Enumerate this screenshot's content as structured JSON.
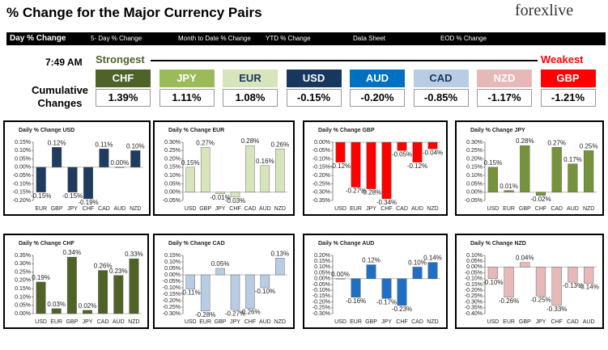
{
  "header": {
    "title": "% Change for the Major Currency Pairs",
    "logo": "forexlive"
  },
  "tabs": [
    "Day % Change",
    "5- Day % Change",
    "Month to Date % Change",
    "YTD % Change",
    "Data Sheet",
    "EOD % Change"
  ],
  "time": "7:49 AM",
  "strongest": "Strongest",
  "weakest": "Weakest",
  "cumulative_label": "Cumulative Changes",
  "currencies": [
    {
      "code": "CHF",
      "change": "1.39%",
      "color": "#4f6228"
    },
    {
      "code": "JPY",
      "change": "1.11%",
      "color": "#9bbb59"
    },
    {
      "code": "EUR",
      "change": "1.08%",
      "color": "#d7e4bc"
    },
    {
      "code": "USD",
      "change": "-0.15%",
      "color": "#17375e"
    },
    {
      "code": "AUD",
      "change": "-0.20%",
      "color": "#0070c0"
    },
    {
      "code": "CAD",
      "change": "-0.85%",
      "color": "#b8cce4"
    },
    {
      "code": "NZD",
      "change": "-1.17%",
      "color": "#e6b9b8"
    },
    {
      "code": "GBP",
      "change": "-1.21%",
      "color": "#ff0000"
    }
  ],
  "chart_data": [
    {
      "type": "bar",
      "title": "Daily % Change USD",
      "color": "#1f3c5e",
      "categories": [
        "EUR",
        "GBP",
        "JPY",
        "CHF",
        "CAD",
        "AUD",
        "NZD"
      ],
      "values": [
        -0.15,
        0.12,
        -0.15,
        -0.19,
        0.11,
        0,
        0.1
      ],
      "value_labels": [
        "-0.15%",
        "0.12%",
        "-0.15%",
        "-0.19%",
        "0.11%",
        "0.00%",
        "0.10%"
      ],
      "ylim": [
        -0.2,
        0.15
      ],
      "yticks": [
        {
          "value": -0.2,
          "label": "-0.20%"
        },
        {
          "value": -0.15,
          "label": "-0.15%"
        },
        {
          "value": -0.1,
          "label": "-0.10%"
        },
        {
          "value": -0.05,
          "label": "-0.05%"
        },
        {
          "value": 0,
          "label": "0.00%"
        },
        {
          "value": 0.05,
          "label": "0.05%"
        },
        {
          "value": 0.1,
          "label": "0.10%"
        },
        {
          "value": 0.15,
          "label": "0.15%"
        }
      ]
    },
    {
      "type": "bar",
      "title": "Daily % Change EUR",
      "color": "#d7e4bc",
      "categories": [
        "USD",
        "GBP",
        "JPY",
        "CHF",
        "CAD",
        "AUD",
        "NZD"
      ],
      "values": [
        0.15,
        0.27,
        -0.01,
        -0.03,
        0.28,
        0.16,
        0.26
      ],
      "value_labels": [
        "0.15%",
        "0.27%",
        "-0.01%",
        "-0.03%",
        "0.28%",
        "0.16%",
        "0.26%"
      ],
      "ylim": [
        -0.05,
        0.3
      ],
      "yticks": [
        {
          "value": -0.05,
          "label": "-0.05%"
        },
        {
          "value": 0,
          "label": "0.00%"
        },
        {
          "value": 0.05,
          "label": "0.05%"
        },
        {
          "value": 0.1,
          "label": "0.10%"
        },
        {
          "value": 0.15,
          "label": "0.15%"
        },
        {
          "value": 0.2,
          "label": "0.20%"
        },
        {
          "value": 0.25,
          "label": "0.25%"
        },
        {
          "value": 0.3,
          "label": "0.30%"
        }
      ]
    },
    {
      "type": "bar",
      "title": "Daily % Change GBP",
      "color": "#ff0000",
      "categories": [
        "USD",
        "EUR",
        "JPY",
        "CHF",
        "CAD",
        "AUD",
        "NZD"
      ],
      "values": [
        -0.12,
        -0.27,
        -0.28,
        -0.34,
        -0.05,
        -0.12,
        -0.04
      ],
      "value_labels": [
        "-0.12%",
        "-0.27%",
        "-0.28%",
        "-0.34%",
        "-0.05%",
        "-0.12%",
        "-0.04%"
      ],
      "ylim": [
        -0.35,
        0
      ],
      "yticks": [
        {
          "value": -0.35,
          "label": "-0.35%"
        },
        {
          "value": -0.3,
          "label": "-0.30%"
        },
        {
          "value": -0.25,
          "label": "-0.25%"
        },
        {
          "value": -0.2,
          "label": "-0.20%"
        },
        {
          "value": -0.15,
          "label": "-0.15%"
        },
        {
          "value": -0.1,
          "label": "-0.10%"
        },
        {
          "value": -0.05,
          "label": "-0.05%"
        },
        {
          "value": 0,
          "label": "0.00%"
        }
      ]
    },
    {
      "type": "bar",
      "title": "Daily % Change JPY",
      "color": "#76923c",
      "categories": [
        "USD",
        "EUR",
        "GBP",
        "CHF",
        "CAD",
        "AUD",
        "NZD"
      ],
      "values": [
        0.15,
        0.01,
        0.28,
        -0.02,
        0.27,
        0.17,
        0.25
      ],
      "value_labels": [
        "0.15%",
        "0.01%",
        "0.28%",
        "-0.02%",
        "0.27%",
        "0.17%",
        "0.25%"
      ],
      "ylim": [
        -0.05,
        0.3
      ],
      "yticks": [
        {
          "value": -0.05,
          "label": "-0.05%"
        },
        {
          "value": 0,
          "label": "0.00%"
        },
        {
          "value": 0.05,
          "label": "0.05%"
        },
        {
          "value": 0.1,
          "label": "0.10%"
        },
        {
          "value": 0.15,
          "label": "0.15%"
        },
        {
          "value": 0.2,
          "label": "0.20%"
        },
        {
          "value": 0.25,
          "label": "0.25%"
        },
        {
          "value": 0.3,
          "label": "0.30%"
        }
      ]
    },
    {
      "type": "bar",
      "title": "Daily % Change CHF",
      "color": "#4f6228",
      "categories": [
        "USD",
        "EUR",
        "GBP",
        "JPY",
        "CAD",
        "AUD",
        "NZD"
      ],
      "values": [
        0.19,
        0.03,
        0.34,
        0.02,
        0.26,
        0.23,
        0.33
      ],
      "value_labels": [
        "0.19%",
        "0.03%",
        "0.34%",
        "0.02%",
        "0.26%",
        "0.23%",
        "0.33%"
      ],
      "ylim": [
        0,
        0.35
      ],
      "yticks": [
        {
          "value": 0,
          "label": "0.00%"
        },
        {
          "value": 0.05,
          "label": "0.05%"
        },
        {
          "value": 0.1,
          "label": "0.10%"
        },
        {
          "value": 0.15,
          "label": "0.15%"
        },
        {
          "value": 0.2,
          "label": "0.20%"
        },
        {
          "value": 0.25,
          "label": "0.25%"
        },
        {
          "value": 0.3,
          "label": "0.30%"
        },
        {
          "value": 0.35,
          "label": "0.35%"
        }
      ]
    },
    {
      "type": "bar",
      "title": "Daily % Change CAD",
      "color": "#b8cce4",
      "categories": [
        "USD",
        "EUR",
        "GBP",
        "JPY",
        "CHF",
        "AUD",
        "NZD"
      ],
      "values": [
        -0.11,
        -0.28,
        0.05,
        -0.27,
        -0.26,
        -0.1,
        0.13
      ],
      "value_labels": [
        "-0.11%",
        "-0.28%",
        "0.05%",
        "-0.27%",
        "-0.26%",
        "-0.10%",
        "0.13%"
      ],
      "ylim": [
        -0.3,
        0.15
      ],
      "yticks": [
        {
          "value": -0.3,
          "label": "-0.30%"
        },
        {
          "value": -0.25,
          "label": "-0.25%"
        },
        {
          "value": -0.2,
          "label": "-0.20%"
        },
        {
          "value": -0.15,
          "label": "-0.15%"
        },
        {
          "value": -0.1,
          "label": "-0.10%"
        },
        {
          "value": -0.05,
          "label": "-0.05%"
        },
        {
          "value": 0,
          "label": "0.00%"
        },
        {
          "value": 0.05,
          "label": "0.05%"
        },
        {
          "value": 0.1,
          "label": "0.10%"
        },
        {
          "value": 0.15,
          "label": "0.15%"
        }
      ]
    },
    {
      "type": "bar",
      "title": "Daily % Change AUD",
      "color": "#1f6fc5",
      "categories": [
        "USD",
        "EUR",
        "GBP",
        "JPY",
        "CHF",
        "CAD",
        "NZD"
      ],
      "values": [
        0,
        -0.16,
        0.12,
        -0.17,
        -0.23,
        0.1,
        0.14
      ],
      "value_labels": [
        "0.00%",
        "-0.16%",
        "0.12%",
        "-0.17%",
        "-0.23%",
        "0.10%",
        "0.14%"
      ],
      "ylim": [
        -0.3,
        0.2
      ],
      "yticks": [
        {
          "value": -0.3,
          "label": "-0.30%"
        },
        {
          "value": -0.25,
          "label": "-0.25%"
        },
        {
          "value": -0.2,
          "label": "-0.20%"
        },
        {
          "value": -0.15,
          "label": "-0.15%"
        },
        {
          "value": -0.1,
          "label": "-0.10%"
        },
        {
          "value": -0.05,
          "label": "-0.05%"
        },
        {
          "value": 0,
          "label": "0.00%"
        },
        {
          "value": 0.05,
          "label": "0.05%"
        },
        {
          "value": 0.1,
          "label": "0.10%"
        },
        {
          "value": 0.15,
          "label": "0.15%"
        },
        {
          "value": 0.2,
          "label": "0.20%"
        }
      ]
    },
    {
      "type": "bar",
      "title": "Daily % Change NZD",
      "color": "#e6b9b8",
      "categories": [
        "USD",
        "EUR",
        "GBP",
        "JPY",
        "CHF",
        "CAD",
        "AUD"
      ],
      "values": [
        -0.1,
        -0.26,
        0.04,
        -0.25,
        -0.33,
        -0.13,
        -0.14
      ],
      "value_labels": [
        "-0.10%",
        "-0.26%",
        "0.04%",
        "-0.25%",
        "-0.33%",
        "-0.13%",
        "-0.14%"
      ],
      "ylim": [
        -0.4,
        0.1
      ],
      "yticks": [
        {
          "value": -0.4,
          "label": "-0.40%"
        },
        {
          "value": -0.35,
          "label": "-0.35%"
        },
        {
          "value": -0.3,
          "label": "-0.30%"
        },
        {
          "value": -0.25,
          "label": "-0.25%"
        },
        {
          "value": -0.2,
          "label": "-0.20%"
        },
        {
          "value": -0.15,
          "label": "-0.15%"
        },
        {
          "value": -0.1,
          "label": "-0.10%"
        },
        {
          "value": -0.05,
          "label": "-0.05%"
        },
        {
          "value": 0,
          "label": "0.00%"
        },
        {
          "value": 0.05,
          "label": "0.05%"
        },
        {
          "value": 0.1,
          "label": "0.10%"
        }
      ]
    }
  ]
}
